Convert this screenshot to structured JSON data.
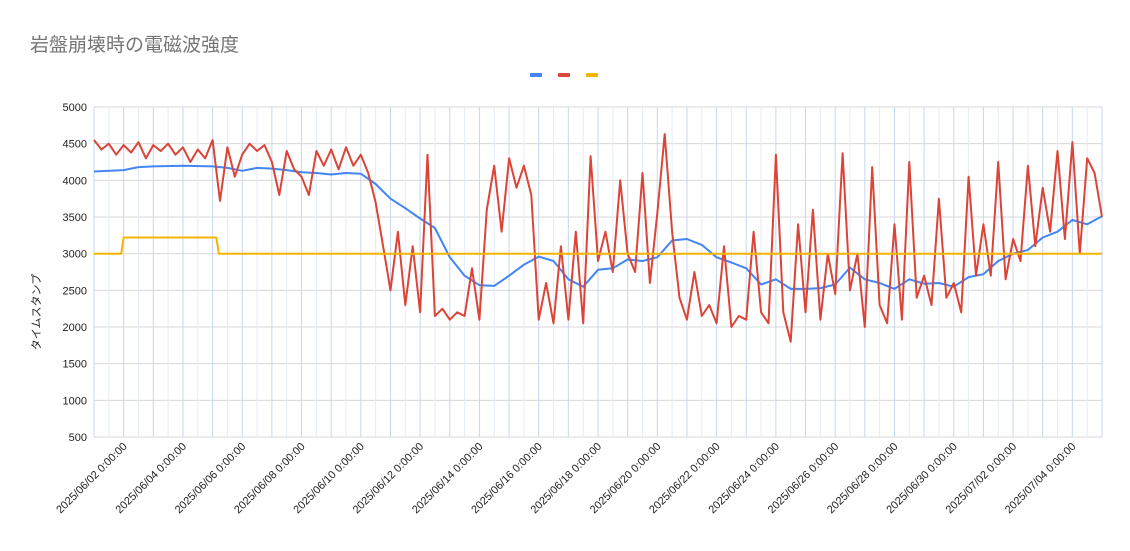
{
  "chart_data": {
    "type": "line",
    "title": "岩盤崩壊時の電磁波強度",
    "ylabel": "タイムスタンプ",
    "xlabel": "",
    "ylim": [
      500,
      5000
    ],
    "yticks": [
      "5000",
      "4500",
      "4000",
      "3500",
      "3000",
      "2500",
      "2000",
      "1500",
      "1000",
      "500"
    ],
    "xticks": [
      "2025/06/02 0:00:00",
      "2025/06/04 0:00:00",
      "2025/06/06 0:00:00",
      "2025/06/08 0:00:00",
      "2025/06/10 0:00:00",
      "2025/06/12 0:00:00",
      "2025/06/14 0:00:00",
      "2025/06/16 0:00:00",
      "2025/06/18 0:00:00",
      "2025/06/20 0:00:00",
      "2025/06/22 0:00:00",
      "2025/06/24 0:00:00",
      "2025/06/26 0:00:00",
      "2025/06/28 0:00:00",
      "2025/06/30 0:00:00",
      "2025/07/02 0:00:00",
      "2025/07/04 0:00:00"
    ],
    "xrange": [
      "2025/06/01 0:00:00",
      "2025/07/05 0:00:00"
    ],
    "grid": true,
    "legend_position": "top-center",
    "series": [
      {
        "color": "#4285f4",
        "points": [
          [
            "2025/06/01 0:00",
            4120
          ],
          [
            "2025/06/02 0:00",
            4140
          ],
          [
            "2025/06/02 12:00",
            4180
          ],
          [
            "2025/06/03 0:00",
            4190
          ],
          [
            "2025/06/04 0:00",
            4200
          ],
          [
            "2025/06/05 0:00",
            4190
          ],
          [
            "2025/06/05 12:00",
            4170
          ],
          [
            "2025/06/06 0:00",
            4130
          ],
          [
            "2025/06/06 12:00",
            4170
          ],
          [
            "2025/06/07 0:00",
            4160
          ],
          [
            "2025/06/07 12:00",
            4140
          ],
          [
            "2025/06/08 0:00",
            4110
          ],
          [
            "2025/06/08 12:00",
            4100
          ],
          [
            "2025/06/09 0:00",
            4080
          ],
          [
            "2025/06/09 12:00",
            4100
          ],
          [
            "2025/06/10 0:00",
            4090
          ],
          [
            "2025/06/10 12:00",
            3950
          ],
          [
            "2025/06/11 0:00",
            3750
          ],
          [
            "2025/06/11 12:00",
            3620
          ],
          [
            "2025/06/12 0:00",
            3480
          ],
          [
            "2025/06/12 12:00",
            3350
          ],
          [
            "2025/06/13 0:00",
            2950
          ],
          [
            "2025/06/13 12:00",
            2700
          ],
          [
            "2025/06/14 0:00",
            2570
          ],
          [
            "2025/06/14 12:00",
            2560
          ],
          [
            "2025/06/15 0:00",
            2700
          ],
          [
            "2025/06/15 12:00",
            2850
          ],
          [
            "2025/06/16 0:00",
            2960
          ],
          [
            "2025/06/16 12:00",
            2900
          ],
          [
            "2025/06/17 0:00",
            2650
          ],
          [
            "2025/06/17 12:00",
            2550
          ],
          [
            "2025/06/18 0:00",
            2780
          ],
          [
            "2025/06/18 12:00",
            2800
          ],
          [
            "2025/06/19 0:00",
            2920
          ],
          [
            "2025/06/19 12:00",
            2900
          ],
          [
            "2025/06/20 0:00",
            2950
          ],
          [
            "2025/06/20 12:00",
            3180
          ],
          [
            "2025/06/21 0:00",
            3200
          ],
          [
            "2025/06/21 12:00",
            3120
          ],
          [
            "2025/06/22 0:00",
            2950
          ],
          [
            "2025/06/22 12:00",
            2880
          ],
          [
            "2025/06/23 0:00",
            2800
          ],
          [
            "2025/06/23 12:00",
            2580
          ],
          [
            "2025/06/24 0:00",
            2650
          ],
          [
            "2025/06/24 12:00",
            2520
          ],
          [
            "2025/06/25 0:00",
            2520
          ],
          [
            "2025/06/25 12:00",
            2530
          ],
          [
            "2025/06/26 0:00",
            2580
          ],
          [
            "2025/06/26 12:00",
            2810
          ],
          [
            "2025/06/27 0:00",
            2650
          ],
          [
            "2025/06/27 12:00",
            2600
          ],
          [
            "2025/06/28 0:00",
            2520
          ],
          [
            "2025/06/28 12:00",
            2650
          ],
          [
            "2025/06/29 0:00",
            2590
          ],
          [
            "2025/06/29 12:00",
            2600
          ],
          [
            "2025/06/30 0:00",
            2550
          ],
          [
            "2025/06/30 12:00",
            2680
          ],
          [
            "2025/07/01 0:00",
            2720
          ],
          [
            "2025/07/01 12:00",
            2900
          ],
          [
            "2025/07/02 0:00",
            3000
          ],
          [
            "2025/07/02 12:00",
            3050
          ],
          [
            "2025/07/03 0:00",
            3220
          ],
          [
            "2025/07/03 12:00",
            3300
          ],
          [
            "2025/07/04 0:00",
            3460
          ],
          [
            "2025/07/04 12:00",
            3400
          ],
          [
            "2025/07/05 0:00",
            3510
          ]
        ]
      },
      {
        "color": "#db4437",
        "points": [
          [
            "2025/06/01 0:00",
            4550
          ],
          [
            "2025/06/01 6:00",
            4420
          ],
          [
            "2025/06/01 12:00",
            4500
          ],
          [
            "2025/06/01 18:00",
            4350
          ],
          [
            "2025/06/02 0:00",
            4480
          ],
          [
            "2025/06/02 6:00",
            4380
          ],
          [
            "2025/06/02 12:00",
            4520
          ],
          [
            "2025/06/02 18:00",
            4300
          ],
          [
            "2025/06/03 0:00",
            4480
          ],
          [
            "2025/06/03 6:00",
            4400
          ],
          [
            "2025/06/03 12:00",
            4500
          ],
          [
            "2025/06/03 18:00",
            4350
          ],
          [
            "2025/06/04 0:00",
            4450
          ],
          [
            "2025/06/04 6:00",
            4250
          ],
          [
            "2025/06/04 12:00",
            4420
          ],
          [
            "2025/06/04 18:00",
            4300
          ],
          [
            "2025/06/05 0:00",
            4550
          ],
          [
            "2025/06/05 6:00",
            3720
          ],
          [
            "2025/06/05 12:00",
            4450
          ],
          [
            "2025/06/05 18:00",
            4050
          ],
          [
            "2025/06/06 0:00",
            4350
          ],
          [
            "2025/06/06 6:00",
            4500
          ],
          [
            "2025/06/06 12:00",
            4400
          ],
          [
            "2025/06/06 18:00",
            4480
          ],
          [
            "2025/06/07 0:00",
            4250
          ],
          [
            "2025/06/07 6:00",
            3800
          ],
          [
            "2025/06/07 12:00",
            4400
          ],
          [
            "2025/06/07 18:00",
            4150
          ],
          [
            "2025/06/08 0:00",
            4050
          ],
          [
            "2025/06/08 6:00",
            3800
          ],
          [
            "2025/06/08 12:00",
            4400
          ],
          [
            "2025/06/08 18:00",
            4200
          ],
          [
            "2025/06/09 0:00",
            4420
          ],
          [
            "2025/06/09 6:00",
            4150
          ],
          [
            "2025/06/09 12:00",
            4450
          ],
          [
            "2025/06/09 18:00",
            4200
          ],
          [
            "2025/06/10 0:00",
            4350
          ],
          [
            "2025/06/10 6:00",
            4100
          ],
          [
            "2025/06/10 12:00",
            3700
          ],
          [
            "2025/06/10 18:00",
            3100
          ],
          [
            "2025/06/11 0:00",
            2500
          ],
          [
            "2025/06/11 6:00",
            3300
          ],
          [
            "2025/06/11 12:00",
            2300
          ],
          [
            "2025/06/11 18:00",
            3100
          ],
          [
            "2025/06/12 0:00",
            2200
          ],
          [
            "2025/06/12 6:00",
            4350
          ],
          [
            "2025/06/12 12:00",
            2150
          ],
          [
            "2025/06/12 18:00",
            2250
          ],
          [
            "2025/06/13 0:00",
            2100
          ],
          [
            "2025/06/13 6:00",
            2200
          ],
          [
            "2025/06/13 12:00",
            2150
          ],
          [
            "2025/06/13 18:00",
            2800
          ],
          [
            "2025/06/14 0:00",
            2100
          ],
          [
            "2025/06/14 6:00",
            3600
          ],
          [
            "2025/06/14 12:00",
            4200
          ],
          [
            "2025/06/14 18:00",
            3300
          ],
          [
            "2025/06/15 0:00",
            4300
          ],
          [
            "2025/06/15 6:00",
            3900
          ],
          [
            "2025/06/15 12:00",
            4200
          ],
          [
            "2025/06/15 18:00",
            3800
          ],
          [
            "2025/06/16 0:00",
            2100
          ],
          [
            "2025/06/16 6:00",
            2600
          ],
          [
            "2025/06/16 12:00",
            2050
          ],
          [
            "2025/06/16 18:00",
            3100
          ],
          [
            "2025/06/17 0:00",
            2100
          ],
          [
            "2025/06/17 6:00",
            3300
          ],
          [
            "2025/06/17 12:00",
            2050
          ],
          [
            "2025/06/17 18:00",
            4330
          ],
          [
            "2025/06/18 0:00",
            2900
          ],
          [
            "2025/06/18 6:00",
            3300
          ],
          [
            "2025/06/18 12:00",
            2750
          ],
          [
            "2025/06/18 18:00",
            4000
          ],
          [
            "2025/06/19 0:00",
            3000
          ],
          [
            "2025/06/19 6:00",
            2750
          ],
          [
            "2025/06/19 12:00",
            4100
          ],
          [
            "2025/06/19 18:00",
            2600
          ],
          [
            "2025/06/20 0:00",
            3550
          ],
          [
            "2025/06/20 6:00",
            4630
          ],
          [
            "2025/06/20 12:00",
            3300
          ],
          [
            "2025/06/20 18:00",
            2400
          ],
          [
            "2025/06/21 0:00",
            2100
          ],
          [
            "2025/06/21 6:00",
            2750
          ],
          [
            "2025/06/21 12:00",
            2150
          ],
          [
            "2025/06/21 18:00",
            2300
          ],
          [
            "2025/06/22 0:00",
            2050
          ],
          [
            "2025/06/22 6:00",
            3100
          ],
          [
            "2025/06/22 12:00",
            2000
          ],
          [
            "2025/06/22 18:00",
            2150
          ],
          [
            "2025/06/23 0:00",
            2100
          ],
          [
            "2025/06/23 6:00",
            3300
          ],
          [
            "2025/06/23 12:00",
            2200
          ],
          [
            "2025/06/23 18:00",
            2050
          ],
          [
            "2025/06/24 0:00",
            4350
          ],
          [
            "2025/06/24 6:00",
            2200
          ],
          [
            "2025/06/24 12:00",
            1800
          ],
          [
            "2025/06/24 18:00",
            3400
          ],
          [
            "2025/06/25 0:00",
            2200
          ],
          [
            "2025/06/25 6:00",
            3600
          ],
          [
            "2025/06/25 12:00",
            2100
          ],
          [
            "2025/06/25 18:00",
            3000
          ],
          [
            "2025/06/26 0:00",
            2450
          ],
          [
            "2025/06/26 6:00",
            4370
          ],
          [
            "2025/06/26 12:00",
            2500
          ],
          [
            "2025/06/26 18:00",
            3000
          ],
          [
            "2025/06/27 0:00",
            2000
          ],
          [
            "2025/06/27 6:00",
            4180
          ],
          [
            "2025/06/27 12:00",
            2300
          ],
          [
            "2025/06/27 18:00",
            2050
          ],
          [
            "2025/06/28 0:00",
            3400
          ],
          [
            "2025/06/28 6:00",
            2100
          ],
          [
            "2025/06/28 12:00",
            4250
          ],
          [
            "2025/06/28 18:00",
            2400
          ],
          [
            "2025/06/29 0:00",
            2700
          ],
          [
            "2025/06/29 6:00",
            2300
          ],
          [
            "2025/06/29 12:00",
            3750
          ],
          [
            "2025/06/29 18:00",
            2400
          ],
          [
            "2025/06/30 0:00",
            2600
          ],
          [
            "2025/06/30 6:00",
            2200
          ],
          [
            "2025/06/30 12:00",
            4050
          ],
          [
            "2025/06/30 18:00",
            2700
          ],
          [
            "2025/07/01 0:00",
            3400
          ],
          [
            "2025/07/01 6:00",
            2700
          ],
          [
            "2025/07/01 12:00",
            4250
          ],
          [
            "2025/07/01 18:00",
            2650
          ],
          [
            "2025/07/02 0:00",
            3200
          ],
          [
            "2025/07/02 6:00",
            2900
          ],
          [
            "2025/07/02 12:00",
            4200
          ],
          [
            "2025/07/02 18:00",
            3100
          ],
          [
            "2025/07/03 0:00",
            3900
          ],
          [
            "2025/07/03 6:00",
            3300
          ],
          [
            "2025/07/03 12:00",
            4400
          ],
          [
            "2025/07/03 18:00",
            3200
          ],
          [
            "2025/07/04 0:00",
            4520
          ],
          [
            "2025/07/04 6:00",
            3000
          ],
          [
            "2025/07/04 12:00",
            4300
          ],
          [
            "2025/07/04 18:00",
            4100
          ],
          [
            "2025/07/05 0:00",
            3500
          ]
        ]
      },
      {
        "color": "#f4b400",
        "points": [
          [
            "2025/06/01 0:00",
            3000
          ],
          [
            "2025/06/01 22:00",
            3000
          ],
          [
            "2025/06/02 0:00",
            3220
          ],
          [
            "2025/06/05 3:00",
            3220
          ],
          [
            "2025/06/05 5:00",
            3000
          ],
          [
            "2025/07/05 0:00",
            3000
          ]
        ]
      }
    ]
  }
}
